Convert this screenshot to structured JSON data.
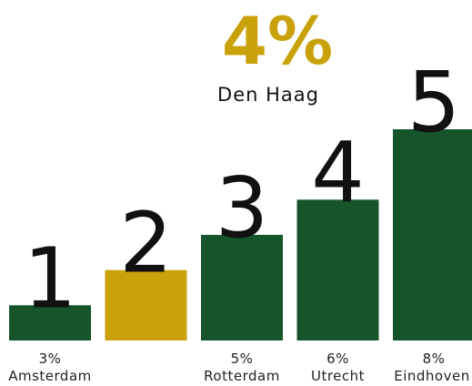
{
  "chart_data": {
    "type": "bar",
    "categories": [
      "Amsterdam",
      "Den Haag",
      "Rotterdam",
      "Utrecht",
      "Eindhoven"
    ],
    "values": [
      3,
      4,
      5,
      6,
      8
    ],
    "value_labels": [
      "3%",
      "4%",
      "5%",
      "6%",
      "8%"
    ],
    "ranks": [
      1,
      2,
      3,
      4,
      5
    ],
    "colors": [
      "#16552b",
      "#c9a10a",
      "#16552b",
      "#16552b",
      "#16552b"
    ],
    "ylim": [
      2,
      8
    ]
  }
}
